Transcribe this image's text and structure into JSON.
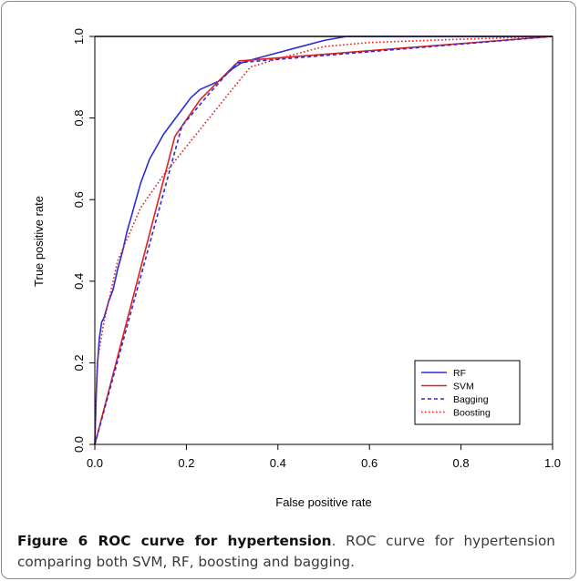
{
  "chart_data": {
    "type": "line",
    "xlabel": "False positive rate",
    "ylabel": "True positive rate",
    "xlim": [
      0,
      1
    ],
    "ylim": [
      0,
      1
    ],
    "ticks": [
      "0.0",
      "0.2",
      "0.4",
      "0.6",
      "0.8",
      "1.0"
    ],
    "legend_position": "bottom-right",
    "series": [
      {
        "name": "RF",
        "color": "#2b2bd6",
        "dash": "solid",
        "points": [
          [
            0,
            0
          ],
          [
            0.003,
            0.12
          ],
          [
            0.006,
            0.2
          ],
          [
            0.01,
            0.26
          ],
          [
            0.015,
            0.3
          ],
          [
            0.02,
            0.31
          ],
          [
            0.03,
            0.35
          ],
          [
            0.04,
            0.38
          ],
          [
            0.05,
            0.43
          ],
          [
            0.06,
            0.47
          ],
          [
            0.07,
            0.52
          ],
          [
            0.08,
            0.56
          ],
          [
            0.09,
            0.6
          ],
          [
            0.1,
            0.64
          ],
          [
            0.11,
            0.67
          ],
          [
            0.12,
            0.7
          ],
          [
            0.13,
            0.72
          ],
          [
            0.14,
            0.74
          ],
          [
            0.15,
            0.76
          ],
          [
            0.17,
            0.79
          ],
          [
            0.19,
            0.82
          ],
          [
            0.21,
            0.85
          ],
          [
            0.23,
            0.87
          ],
          [
            0.25,
            0.88
          ],
          [
            0.27,
            0.89
          ],
          [
            0.3,
            0.92
          ],
          [
            0.32,
            0.935
          ],
          [
            0.35,
            0.945
          ],
          [
            0.4,
            0.96
          ],
          [
            0.45,
            0.975
          ],
          [
            0.5,
            0.99
          ],
          [
            0.55,
            1.0
          ],
          [
            1.0,
            1.0
          ]
        ]
      },
      {
        "name": "SVM",
        "color": "#e0201e",
        "dash": "solid",
        "points": [
          [
            0,
            0
          ],
          [
            0.175,
            0.755
          ],
          [
            0.23,
            0.845
          ],
          [
            0.27,
            0.89
          ],
          [
            0.315,
            0.94
          ],
          [
            1.0,
            1.0
          ]
        ]
      },
      {
        "name": "Bagging",
        "color": "#2b2bd6",
        "dash": "4,3",
        "points": [
          [
            0,
            0
          ],
          [
            0.19,
            0.78
          ],
          [
            0.25,
            0.86
          ],
          [
            0.31,
            0.935
          ],
          [
            0.36,
            0.94
          ],
          [
            1.0,
            1.0
          ]
        ]
      },
      {
        "name": "Boosting",
        "color": "#e0201e",
        "dash": "1.6,2.4",
        "points": [
          [
            0,
            0
          ],
          [
            0.005,
            0.2
          ],
          [
            0.02,
            0.3
          ],
          [
            0.05,
            0.45
          ],
          [
            0.1,
            0.58
          ],
          [
            0.15,
            0.66
          ],
          [
            0.2,
            0.73
          ],
          [
            0.25,
            0.8
          ],
          [
            0.3,
            0.87
          ],
          [
            0.34,
            0.925
          ],
          [
            0.4,
            0.945
          ],
          [
            0.5,
            0.975
          ],
          [
            0.6,
            0.985
          ],
          [
            0.8,
            0.993
          ],
          [
            1.0,
            1.0
          ]
        ]
      }
    ]
  },
  "caption": {
    "figure_label": "Figure 6",
    "title": "ROC curve for hypertension",
    "text": ". ROC curve for hypertension comparing both SVM, RF, boosting and bagging."
  }
}
